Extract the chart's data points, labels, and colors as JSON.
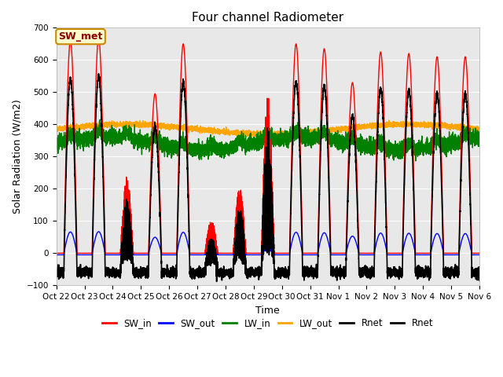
{
  "title": "Four channel Radiometer",
  "xlabel": "Time",
  "ylabel": "Solar Radiation (W/m2)",
  "ylim": [
    -100,
    700
  ],
  "plot_bg": "#e8e8e8",
  "annotation_text": "SW_met",
  "annotation_bg": "#ffffcc",
  "annotation_border": "#cc8800",
  "tick_labels": [
    "Oct 22",
    "Oct 23",
    "Oct 24",
    "Oct 25",
    "Oct 26",
    "Oct 27",
    "Oct 28",
    "Oct 29",
    "Oct 30",
    "Oct 31",
    "Nov 1",
    "Nov 2",
    "Nov 3",
    "Nov 4",
    "Nov 5",
    "Nov 6"
  ],
  "legend_entries": [
    "SW_in",
    "SW_out",
    "LW_in",
    "LW_out",
    "Rnet",
    "Rnet"
  ],
  "legend_colors": [
    "red",
    "blue",
    "green",
    "orange",
    "black",
    "black"
  ],
  "n_days": 15,
  "pts_per_day": 480,
  "sw_in_peaks": [
    660,
    670,
    240,
    495,
    650,
    105,
    205,
    490,
    650,
    635,
    530,
    625,
    620,
    610,
    610
  ],
  "cloudy_days": [
    2,
    5,
    6,
    7
  ],
  "lw_in_base": 340,
  "lw_out_base": 385,
  "night_rnet": -60,
  "grid_color": "white",
  "title_fontsize": 11,
  "label_fontsize": 9,
  "tick_fontsize": 7.5,
  "legend_fontsize": 8.5
}
